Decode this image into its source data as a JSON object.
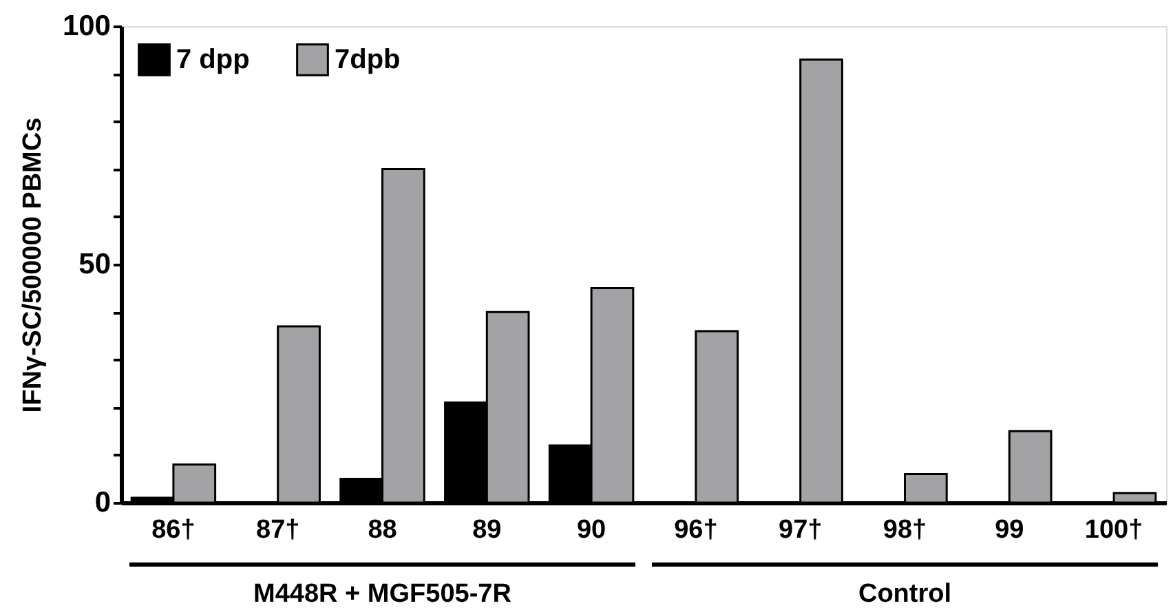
{
  "chart_data": {
    "type": "bar",
    "ylabel": "IFNγ-SC/500000 PBMCs",
    "categories": [
      "86†",
      "87†",
      "88",
      "89",
      "90",
      "96†",
      "97†",
      "98†",
      "99",
      "100†"
    ],
    "series": [
      {
        "name": "7 dpp",
        "color": "#000000",
        "values": [
          1,
          0,
          5,
          21,
          12,
          0,
          0,
          0,
          0,
          0
        ]
      },
      {
        "name": "7dpb",
        "color": "#a3a3a6",
        "values": [
          8,
          37,
          70,
          40,
          45,
          36,
          93,
          6,
          15,
          2
        ]
      }
    ],
    "ylim": [
      0,
      100
    ],
    "yticks": [
      0,
      {
        "value": 10,
        "label": null
      },
      {
        "value": 20,
        "label": null
      },
      {
        "value": 30,
        "label": null
      },
      {
        "value": 40,
        "label": null
      },
      50,
      {
        "value": 60,
        "label": null
      },
      {
        "value": 70,
        "label": null
      },
      {
        "value": 80,
        "label": null
      },
      {
        "value": 90,
        "label": null
      },
      100
    ],
    "grid": false,
    "legend": "top left",
    "annotations": [
      "M448R + MGF505-7R",
      "Control"
    ]
  }
}
